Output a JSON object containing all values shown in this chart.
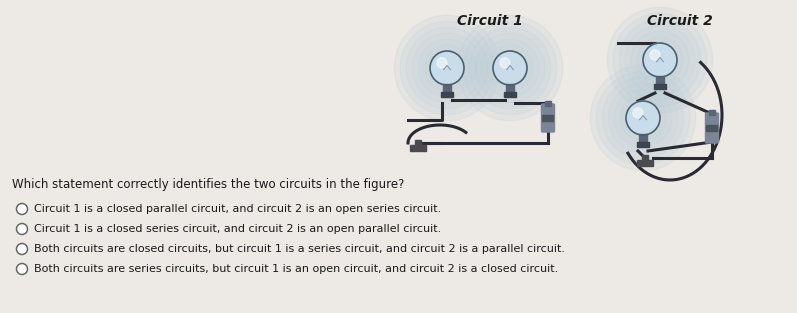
{
  "bg_color": "#ede9e4",
  "title1": "Circuit 1",
  "title2": "Circuit 2",
  "question": "Which statement correctly identifies the two circuits in the figure?",
  "options": [
    "Circuit 1 is a closed parallel circuit, and circuit 2 is an open series circuit.",
    "Circuit 1 is a closed series circuit, and circuit 2 is an open parallel circuit.",
    "Both circuits are closed circuits, but circuit 1 is a series circuit, and circuit 2 is a parallel circuit.",
    "Both circuits are series circuits, but circuit 1 is an open circuit, and circuit 2 is a closed circuit."
  ],
  "title_fontsize": 10,
  "question_fontsize": 8.5,
  "option_fontsize": 8,
  "text_color": "#1a1a1a",
  "circle_color": "#666666",
  "wire_color": "#2a2a35",
  "bulb_glass": "#c8dcea",
  "bulb_glow_inner": "#dde8f0",
  "bulb_base": "#5a6575",
  "battery_color": "#6a7585",
  "switch_color": "#4a4a4a"
}
